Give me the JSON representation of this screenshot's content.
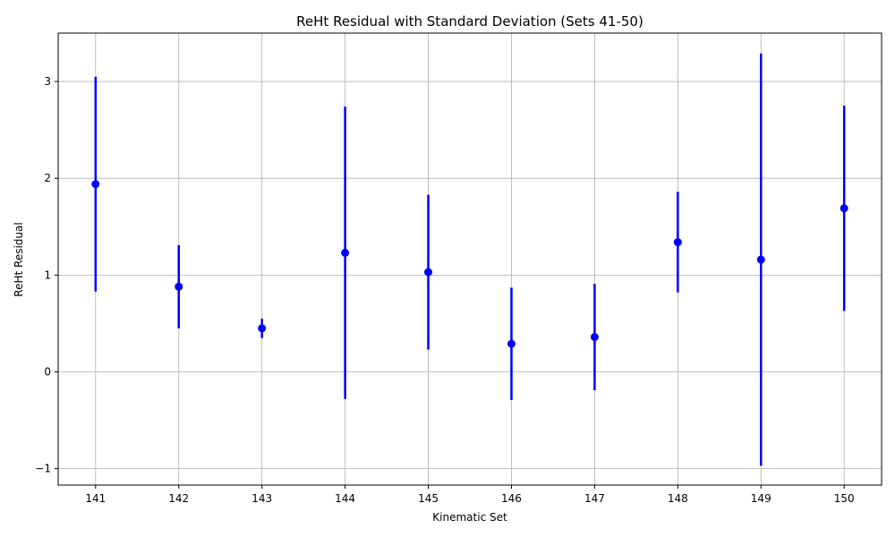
{
  "chart_data": {
    "type": "scatter",
    "title": "ReHt Residual with Standard Deviation (Sets 41-50)",
    "xlabel": "Kinematic Set",
    "ylabel": "ReHt Residual",
    "categories": [
      "141",
      "142",
      "143",
      "144",
      "145",
      "146",
      "147",
      "148",
      "149",
      "150"
    ],
    "x": [
      141,
      142,
      143,
      144,
      145,
      146,
      147,
      148,
      149,
      150
    ],
    "y": [
      1.94,
      0.88,
      0.45,
      1.23,
      1.03,
      0.29,
      0.36,
      1.34,
      1.16,
      1.69
    ],
    "yerr": [
      1.11,
      0.43,
      0.1,
      1.51,
      0.8,
      0.58,
      0.55,
      0.52,
      2.13,
      1.06
    ],
    "xlim": [
      140.55,
      150.45
    ],
    "ylim": [
      -1.17,
      3.5
    ],
    "yticks": [
      -1,
      0,
      1,
      2,
      3
    ],
    "ytick_labels": [
      "−1",
      "0",
      "1",
      "2",
      "3"
    ],
    "xticks": [
      141,
      142,
      143,
      144,
      145,
      146,
      147,
      148,
      149,
      150
    ],
    "grid": true,
    "color": "#0000ff"
  }
}
